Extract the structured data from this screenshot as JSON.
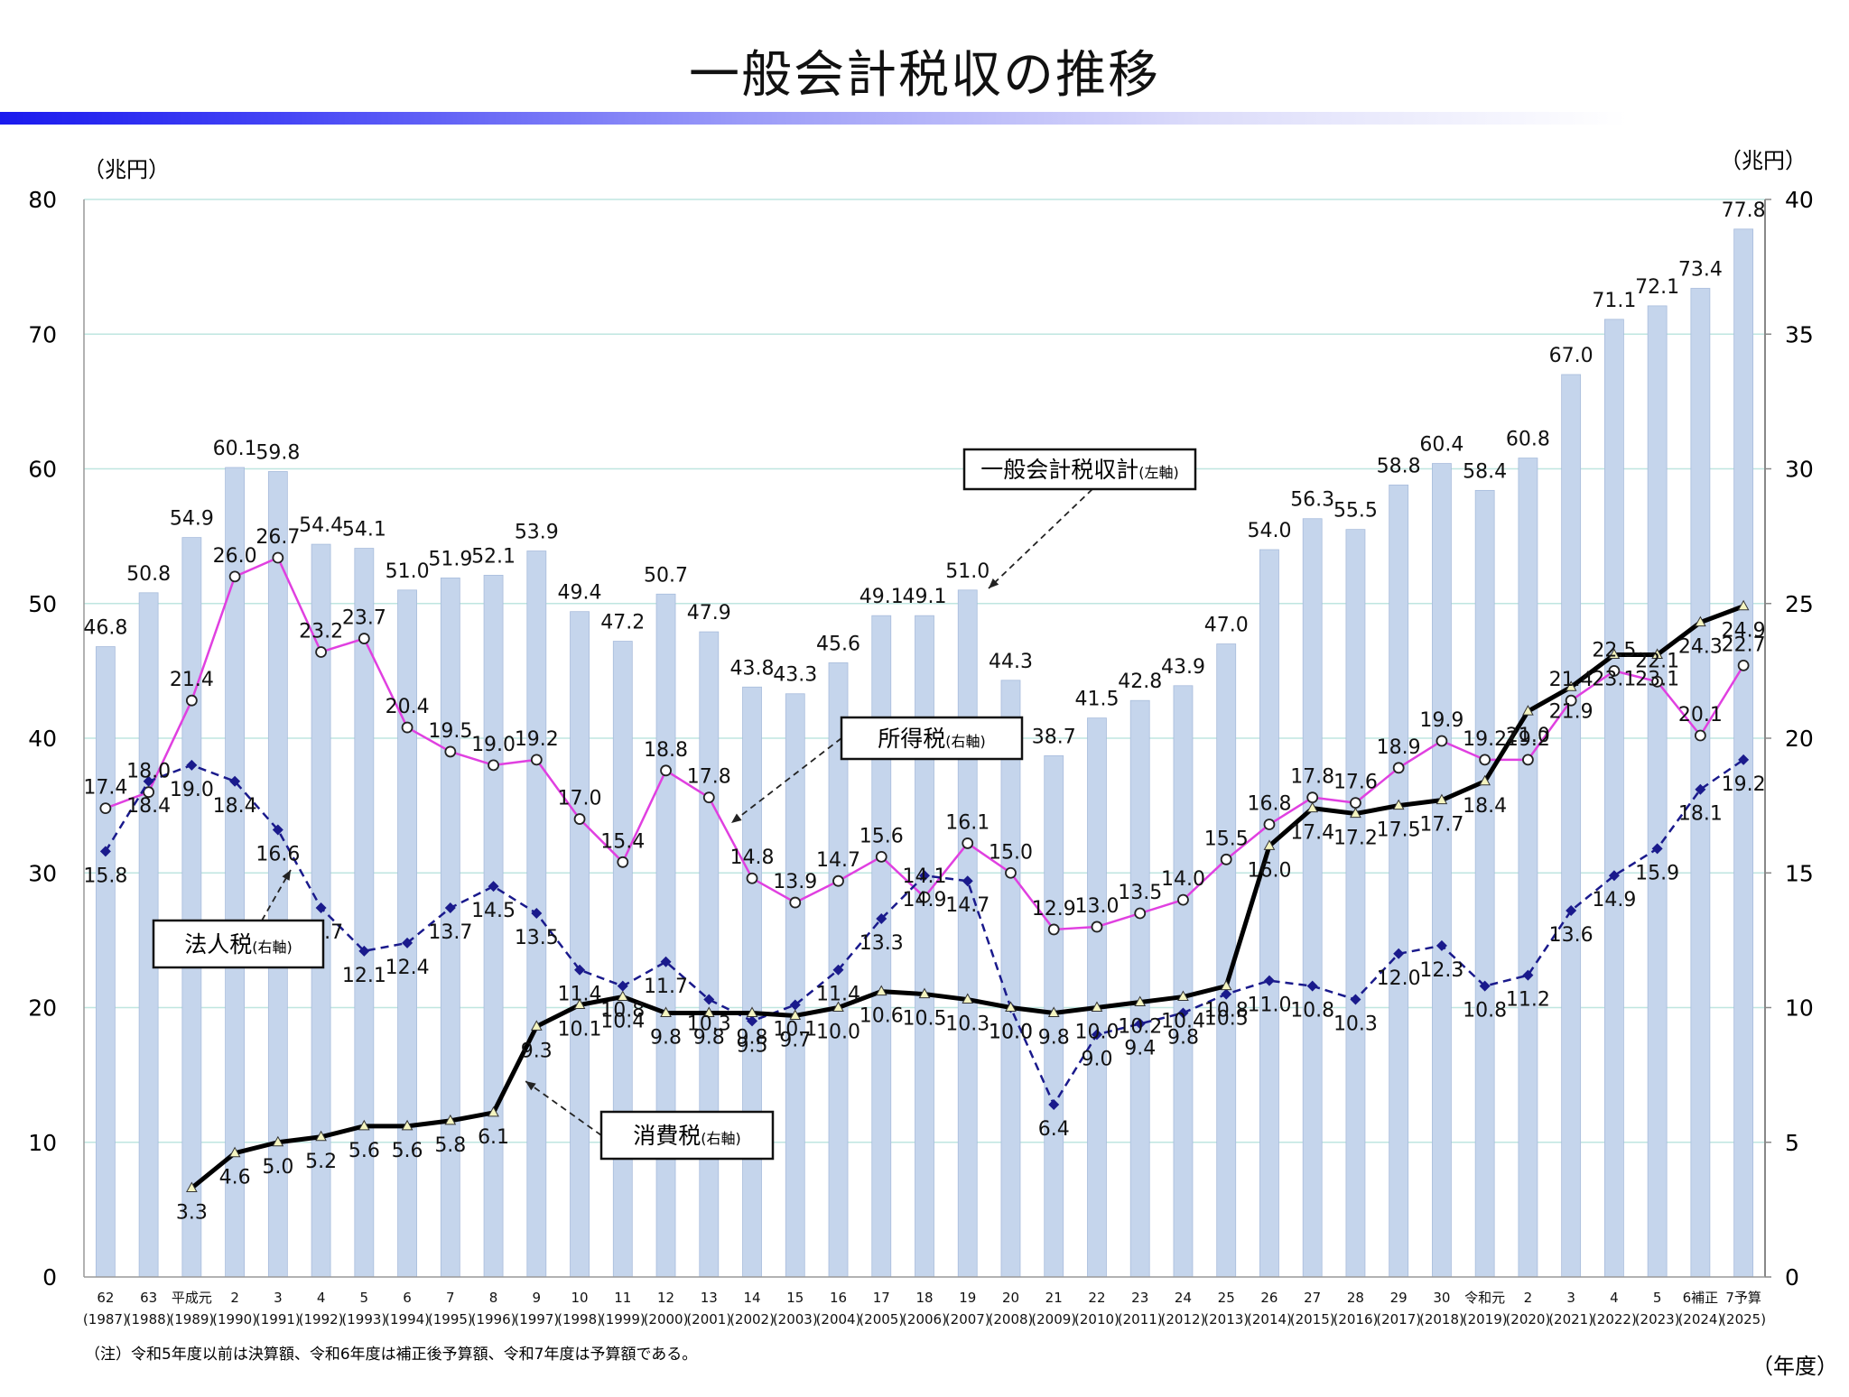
{
  "title": "一般会計税収の推移",
  "note": "（注）令和5年度以前は決算額、令和6年度は補正後予算額、令和7年度は予算額である。",
  "x_axis_unit": "（年度）",
  "left_axis_unit": "（兆円）",
  "right_axis_unit": "（兆円）",
  "colors": {
    "bar": "#c5d5ec",
    "bar_edge": "#a8bcdc",
    "income_tax": "#e040e0",
    "corporate_tax": "#1a1a8c",
    "consumption_tax": "#000000",
    "gridline": "#bfe6e0",
    "title_bar_start": "#1a1aee"
  },
  "chart_data": {
    "type": "bar+line",
    "title": "一般会計税収の推移",
    "xlabel": "（年度）",
    "ylabel_left": "（兆円）",
    "ylabel_right": "（兆円）",
    "ylim_left": [
      0,
      80
    ],
    "ylim_right": [
      0,
      40
    ],
    "yticks_left": [
      0,
      10,
      20,
      30,
      40,
      50,
      60,
      70,
      80
    ],
    "yticks_right": [
      0,
      5,
      10,
      15,
      20,
      25,
      30,
      35,
      40
    ],
    "grid": true,
    "categories": [
      {
        "era": "62",
        "year": "(1987)"
      },
      {
        "era": "63",
        "year": "(1988)"
      },
      {
        "era": "平成元",
        "year": "(1989)"
      },
      {
        "era": "2",
        "year": "(1990)"
      },
      {
        "era": "3",
        "year": "(1991)"
      },
      {
        "era": "4",
        "year": "(1992)"
      },
      {
        "era": "5",
        "year": "(1993)"
      },
      {
        "era": "6",
        "year": "(1994)"
      },
      {
        "era": "7",
        "year": "(1995)"
      },
      {
        "era": "8",
        "year": "(1996)"
      },
      {
        "era": "9",
        "year": "(1997)"
      },
      {
        "era": "10",
        "year": "(1998)"
      },
      {
        "era": "11",
        "year": "(1999)"
      },
      {
        "era": "12",
        "year": "(2000)"
      },
      {
        "era": "13",
        "year": "(2001)"
      },
      {
        "era": "14",
        "year": "(2002)"
      },
      {
        "era": "15",
        "year": "(2003)"
      },
      {
        "era": "16",
        "year": "(2004)"
      },
      {
        "era": "17",
        "year": "(2005)"
      },
      {
        "era": "18",
        "year": "(2006)"
      },
      {
        "era": "19",
        "year": "(2007)"
      },
      {
        "era": "20",
        "year": "(2008)"
      },
      {
        "era": "21",
        "year": "(2009)"
      },
      {
        "era": "22",
        "year": "(2010)"
      },
      {
        "era": "23",
        "year": "(2011)"
      },
      {
        "era": "24",
        "year": "(2012)"
      },
      {
        "era": "25",
        "year": "(2013)"
      },
      {
        "era": "26",
        "year": "(2014)"
      },
      {
        "era": "27",
        "year": "(2015)"
      },
      {
        "era": "28",
        "year": "(2016)"
      },
      {
        "era": "29",
        "year": "(2017)"
      },
      {
        "era": "30",
        "year": "(2018)"
      },
      {
        "era": "令和元",
        "year": "(2019)"
      },
      {
        "era": "2",
        "year": "(2020)"
      },
      {
        "era": "3",
        "year": "(2021)"
      },
      {
        "era": "4",
        "year": "(2022)"
      },
      {
        "era": "5",
        "year": "(2023)"
      },
      {
        "era": "6補正",
        "year": "(2024)"
      },
      {
        "era": "7予算",
        "year": "(2025)"
      }
    ],
    "series": [
      {
        "name": "一般会計税収計",
        "axis_note": "(左軸)",
        "type": "bar",
        "axis": "left",
        "values": [
          46.8,
          50.8,
          54.9,
          60.1,
          59.8,
          54.4,
          54.1,
          51.0,
          51.9,
          52.1,
          53.9,
          49.4,
          47.2,
          50.7,
          47.9,
          43.8,
          43.3,
          45.6,
          49.1,
          49.1,
          51.0,
          44.3,
          38.7,
          41.5,
          42.8,
          43.9,
          47.0,
          54.0,
          56.3,
          55.5,
          58.8,
          60.4,
          58.4,
          60.8,
          67.0,
          71.1,
          72.1,
          73.4,
          77.8
        ]
      },
      {
        "name": "所得税",
        "axis_note": "(右軸)",
        "type": "line",
        "axis": "right",
        "marker": "open-circle",
        "values": [
          17.4,
          18.0,
          21.4,
          26.0,
          26.7,
          23.2,
          23.7,
          20.4,
          19.5,
          19.0,
          19.2,
          17.0,
          15.4,
          18.8,
          17.8,
          14.8,
          13.9,
          14.7,
          15.6,
          14.1,
          16.1,
          15.0,
          12.9,
          13.0,
          13.5,
          14.0,
          15.5,
          16.8,
          17.8,
          17.6,
          18.9,
          19.9,
          19.2,
          19.2,
          21.4,
          22.5,
          22.1,
          20.1,
          22.7
        ]
      },
      {
        "name": "法人税",
        "axis_note": "(右軸)",
        "type": "line",
        "axis": "right",
        "style": "dashed",
        "marker": "diamond",
        "values": [
          15.8,
          18.4,
          19.0,
          18.4,
          16.6,
          13.7,
          12.1,
          12.4,
          13.7,
          14.5,
          13.5,
          11.4,
          10.8,
          11.7,
          10.3,
          9.5,
          10.1,
          11.4,
          13.3,
          14.9,
          14.7,
          10.0,
          6.4,
          9.0,
          9.4,
          9.8,
          10.5,
          11.0,
          10.8,
          10.3,
          12.0,
          12.3,
          10.8,
          11.2,
          13.6,
          14.9,
          15.9,
          18.1,
          19.2
        ]
      },
      {
        "name": "消費税",
        "axis_note": "(右軸)",
        "type": "line",
        "axis": "right",
        "style": "bold",
        "marker": "triangle",
        "values": [
          null,
          null,
          3.3,
          4.6,
          5.0,
          5.2,
          5.6,
          5.6,
          5.8,
          6.1,
          9.3,
          10.1,
          10.4,
          9.8,
          9.8,
          9.8,
          9.7,
          10.0,
          10.6,
          10.5,
          10.3,
          10.0,
          9.8,
          10.0,
          10.2,
          10.4,
          10.8,
          16.0,
          17.4,
          17.2,
          17.5,
          17.7,
          18.4,
          21.0,
          21.9,
          23.1,
          23.1,
          24.3,
          24.9
        ]
      }
    ],
    "callouts": [
      {
        "series": "一般会計税収計",
        "label": "一般会計税収計",
        "note": "(左軸)"
      },
      {
        "series": "所得税",
        "label": "所得税",
        "note": "(右軸)"
      },
      {
        "series": "法人税",
        "label": "法人税",
        "note": "(右軸)"
      },
      {
        "series": "消費税",
        "label": "消費税",
        "note": "(右軸)"
      }
    ]
  }
}
